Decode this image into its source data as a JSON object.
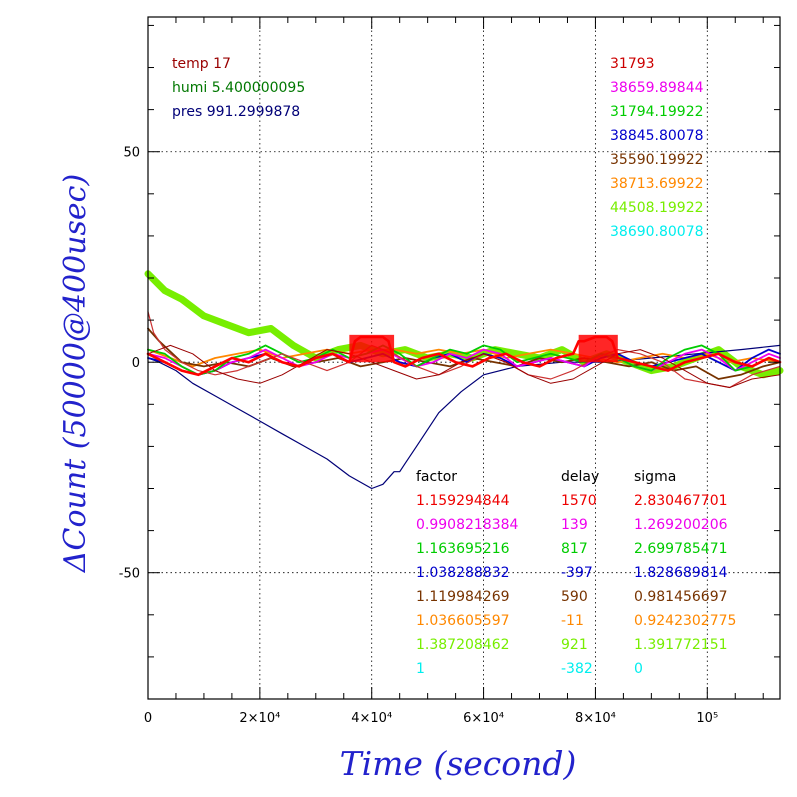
{
  "chart_data": {
    "type": "line",
    "xlabel": "Time (second)",
    "ylabel": "ΔCount (50000@400usec)",
    "xlim": [
      0,
      113000
    ],
    "ylim": [
      -80,
      82
    ],
    "x_ticks": [
      {
        "value": 0,
        "label": "0"
      },
      {
        "value": 20000,
        "label": "2×10⁴"
      },
      {
        "value": 40000,
        "label": "4×10⁴"
      },
      {
        "value": 60000,
        "label": "6×10⁴"
      },
      {
        "value": 80000,
        "label": "8×10⁴"
      },
      {
        "value": 100000,
        "label": "10⁵"
      }
    ],
    "y_ticks": [
      {
        "value": 50,
        "label": "50"
      },
      {
        "value": 0,
        "label": "0"
      },
      {
        "value": -50,
        "label": "-50"
      }
    ],
    "grid": true,
    "conditions": [
      {
        "text": "temp 17",
        "color": "#990000"
      },
      {
        "text": "humi 5.400000095",
        "color": "#007700"
      },
      {
        "text": "pres 991.2999878",
        "color": "#000077"
      }
    ],
    "channel_values": [
      {
        "text": "31793",
        "color": "#cc0000"
      },
      {
        "text": "38659.89844",
        "color": "#ee00ee"
      },
      {
        "text": "31794.19922",
        "color": "#00cc00"
      },
      {
        "text": "38845.80078",
        "color": "#0000cc"
      },
      {
        "text": "35590.19922",
        "color": "#773300"
      },
      {
        "text": "38713.69922",
        "color": "#ff8800"
      },
      {
        "text": "44508.19922",
        "color": "#77ee00"
      },
      {
        "text": "38690.80078",
        "color": "#00eeee"
      }
    ],
    "table": {
      "headers": [
        "factor",
        "delay",
        "sigma"
      ],
      "rows": [
        {
          "factor": "1.159294844",
          "delay": "1570",
          "sigma": "2.830467701",
          "color": "#ee0000"
        },
        {
          "factor": "0.9908218384",
          "delay": "139",
          "sigma": "1.269200206",
          "color": "#ee00ee"
        },
        {
          "factor": "1.163695216",
          "delay": "817",
          "sigma": "2.699785471",
          "color": "#00cc00"
        },
        {
          "factor": "1.038288832",
          "delay": "-397",
          "sigma": "1.828689814",
          "color": "#0000cc"
        },
        {
          "factor": "1.119984269",
          "delay": "590",
          "sigma": "0.981456697",
          "color": "#773300"
        },
        {
          "factor": "1.036605597",
          "delay": "-11",
          "sigma": "0.9242302775",
          "color": "#ff8800"
        },
        {
          "factor": "1.387208462",
          "delay": "921",
          "sigma": "1.391772151",
          "color": "#77ee00"
        },
        {
          "factor": "1",
          "delay": "-382",
          "sigma": "0",
          "color": "#00eeee"
        }
      ]
    },
    "series": [
      {
        "color": "#77ee00",
        "x": [
          0,
          3000,
          6000,
          10000,
          14000,
          18000,
          22000,
          26000,
          30000,
          34000,
          38000,
          42000,
          46000,
          50000,
          54000,
          58000,
          62000,
          66000,
          70000,
          74000,
          78000,
          82000,
          86000,
          90000,
          94000,
          98000,
          102000,
          106000,
          110000,
          113000
        ],
        "y": [
          21,
          17,
          15,
          11,
          9,
          7,
          8,
          4,
          1,
          3,
          4,
          2,
          3,
          1,
          2,
          1,
          3,
          2,
          1,
          3,
          0,
          2,
          0,
          -2,
          -1,
          1,
          3,
          -1,
          -3,
          -2
        ]
      },
      {
        "color": "#000077",
        "x": [
          0,
          2000,
          5000,
          8000,
          12000,
          16000,
          20000,
          24000,
          28000,
          32000,
          36000,
          40000,
          42000,
          44000,
          45000,
          46000,
          48000,
          52000,
          56000,
          60000,
          66000,
          74000,
          82000,
          90000,
          98000,
          106000,
          113000
        ],
        "y": [
          1,
          0,
          -2,
          -5,
          -8,
          -11,
          -14,
          -17,
          -20,
          -23,
          -27,
          -30,
          -29,
          -26,
          -26,
          -24,
          -20,
          -12,
          -7,
          -3,
          -1,
          0,
          0,
          1,
          2,
          3,
          4
        ]
      },
      {
        "color": "#ff8800",
        "x": [
          0,
          4000,
          8000,
          12000,
          16000,
          20000,
          24000,
          28000,
          32000,
          36000,
          40000,
          44000,
          48000,
          52000,
          56000,
          60000,
          64000,
          68000,
          72000,
          76000,
          80000,
          84000,
          88000,
          92000,
          96000,
          100000,
          104000,
          108000,
          113000
        ],
        "y": [
          3,
          1,
          -1,
          1,
          2,
          3,
          1,
          2,
          3,
          2,
          3,
          3,
          2,
          3,
          2,
          3,
          1,
          2,
          3,
          2,
          1,
          0,
          1,
          2,
          1,
          2,
          0,
          1,
          0
        ]
      },
      {
        "color": "#773300",
        "x": [
          0,
          2000,
          6000,
          10000,
          14000,
          18000,
          22000,
          26000,
          30000,
          34000,
          38000,
          42000,
          46000,
          50000,
          54000,
          58000,
          62000,
          66000,
          70000,
          74000,
          78000,
          82000,
          86000,
          90000,
          94000,
          98000,
          102000,
          106000,
          110000,
          113000
        ],
        "y": [
          8,
          5,
          0,
          -1,
          0,
          -1,
          1,
          -1,
          0,
          1,
          -1,
          0,
          1,
          0,
          -1,
          1,
          0,
          -1,
          1,
          0,
          1,
          0,
          -1,
          0,
          -2,
          -1,
          -4,
          -3,
          -1,
          0
        ]
      },
      {
        "color": "#0000cc",
        "x": [
          0,
          3000,
          6000,
          9000,
          12000,
          15000,
          18000,
          21000,
          24000,
          27000,
          30000,
          33000,
          36000,
          39000,
          42000,
          45000,
          48000,
          51000,
          54000,
          57000,
          60000,
          63000,
          66000,
          69000,
          72000,
          75000,
          78000,
          81000,
          84000,
          87000,
          90000,
          93000,
          96000,
          99000,
          102000,
          105000,
          108000,
          111000,
          113000
        ],
        "y": [
          1,
          0,
          -2,
          -3,
          -2,
          0,
          1,
          2,
          0,
          -1,
          1,
          2,
          0,
          1,
          2,
          0,
          -1,
          1,
          2,
          0,
          2,
          1,
          -1,
          0,
          1,
          0,
          -1,
          1,
          2,
          0,
          -1,
          0,
          1,
          2,
          0,
          -2,
          1,
          3,
          2
        ]
      },
      {
        "color": "#ee00ee",
        "x": [
          0,
          3000,
          6000,
          9000,
          12000,
          15000,
          18000,
          21000,
          24000,
          27000,
          30000,
          33000,
          36000,
          39000,
          42000,
          45000,
          48000,
          51000,
          54000,
          57000,
          60000,
          63000,
          66000,
          69000,
          72000,
          75000,
          78000,
          81000,
          84000,
          87000,
          90000,
          93000,
          96000,
          99000,
          102000,
          105000,
          108000,
          111000,
          113000
        ],
        "y": [
          2,
          1,
          -1,
          -3,
          -2,
          0,
          1,
          3,
          1,
          -1,
          0,
          2,
          1,
          2,
          3,
          1,
          -1,
          0,
          2,
          1,
          3,
          2,
          -1,
          0,
          1,
          0,
          -1,
          2,
          1,
          -1,
          -2,
          0,
          2,
          3,
          1,
          -2,
          0,
          2,
          1
        ]
      },
      {
        "color": "#00cc00",
        "x": [
          0,
          3000,
          6000,
          9000,
          12000,
          15000,
          18000,
          21000,
          24000,
          27000,
          30000,
          33000,
          36000,
          39000,
          42000,
          45000,
          48000,
          51000,
          54000,
          57000,
          60000,
          63000,
          66000,
          69000,
          72000,
          75000,
          78000,
          81000,
          84000,
          87000,
          90000,
          93000,
          96000,
          99000,
          102000,
          105000,
          108000,
          111000,
          113000
        ],
        "y": [
          3,
          2,
          -1,
          -3,
          -2,
          1,
          2,
          4,
          2,
          0,
          1,
          3,
          1,
          2,
          4,
          2,
          -1,
          1,
          3,
          2,
          4,
          3,
          0,
          1,
          2,
          1,
          0,
          2,
          1,
          -1,
          -2,
          1,
          3,
          4,
          2,
          -2,
          -1,
          1,
          0
        ]
      },
      {
        "color": "#cc3333",
        "x": [
          0,
          1000,
          3000,
          6000,
          9000,
          12000,
          16000,
          20000,
          24000,
          28000,
          32000,
          36000,
          40000,
          44000,
          48000,
          52000,
          56000,
          60000,
          64000,
          68000,
          72000,
          76000,
          80000,
          84000,
          88000,
          92000,
          96000,
          100000,
          104000,
          108000,
          113000
        ],
        "y": [
          12,
          7,
          3,
          0,
          -2,
          -3,
          -2,
          0,
          2,
          0,
          -2,
          0,
          4,
          2,
          -1,
          -3,
          -1,
          2,
          0,
          -3,
          -4,
          -2,
          1,
          3,
          2,
          0,
          -4,
          -5,
          -6,
          -3,
          -1
        ]
      },
      {
        "color": "#990000",
        "x": [
          0,
          4000,
          8000,
          12000,
          16000,
          20000,
          24000,
          28000,
          32000,
          36000,
          40000,
          44000,
          48000,
          52000,
          56000,
          60000,
          64000,
          68000,
          72000,
          76000,
          80000,
          84000,
          88000,
          92000,
          96000,
          100000,
          104000,
          108000,
          113000
        ],
        "y": [
          2,
          4,
          2,
          -2,
          -4,
          -5,
          -3,
          0,
          3,
          2,
          0,
          -2,
          -4,
          -3,
          0,
          2,
          0,
          -3,
          -5,
          -4,
          -1,
          2,
          3,
          1,
          -2,
          -5,
          -6,
          -4,
          -3
        ]
      },
      {
        "color": "#ff0000",
        "x": [
          0,
          3000,
          6000,
          9000,
          12000,
          15000,
          18000,
          21000,
          24000,
          27000,
          30000,
          33000,
          36000,
          37000,
          38000,
          40000,
          42000,
          43000,
          44000,
          46000,
          49000,
          52000,
          55000,
          58000,
          61000,
          64000,
          67000,
          70000,
          73000,
          76000,
          77000,
          78000,
          80000,
          82000,
          83000,
          84000,
          87000,
          90000,
          93000,
          96000,
          99000,
          102000,
          105000,
          108000,
          111000,
          113000
        ],
        "y": [
          2,
          0,
          -2,
          -3,
          -1,
          1,
          0,
          2,
          0,
          -1,
          1,
          2,
          0,
          5,
          6,
          6,
          6,
          5,
          0,
          -1,
          1,
          2,
          0,
          -1,
          1,
          2,
          0,
          -1,
          1,
          2,
          5,
          5,
          6,
          6,
          5,
          1,
          0,
          -1,
          -2,
          0,
          1,
          2,
          0,
          -1,
          1,
          0
        ]
      }
    ]
  }
}
